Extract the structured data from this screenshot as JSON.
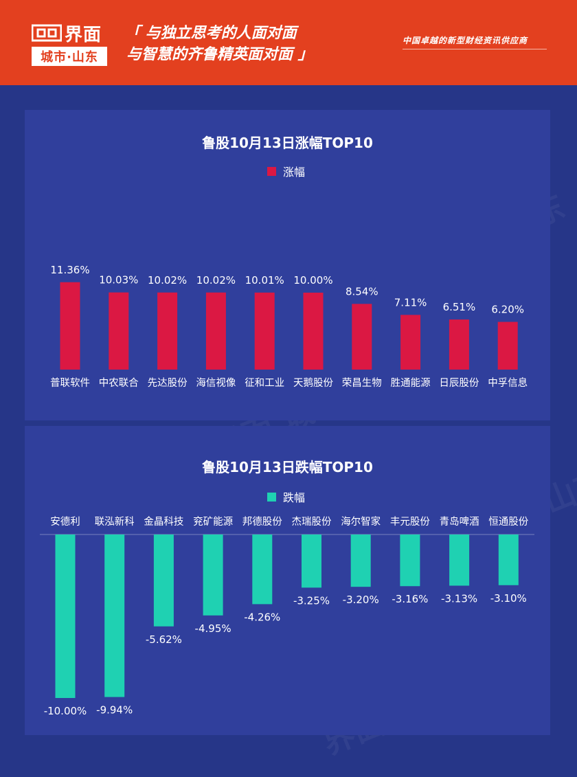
{
  "header": {
    "logo_main": "界面",
    "logo_sub": "城市·山东",
    "slogan_line1": "「 与独立思考的人面对面",
    "slogan_line2": "与智慧的齐鲁精英面对面 」",
    "tagline": "中国卓越的新型财经资讯供应商"
  },
  "colors": {
    "header_bg": "#e3401f",
    "page_bg": "#263688",
    "panel_bg": "#303f9c",
    "gain_bar": "#db1843",
    "loss_bar": "#1fd1b2"
  },
  "watermark_text": "界面 城市·山东",
  "chart_data": [
    {
      "type": "bar",
      "title": "鲁股10月13日涨幅TOP10",
      "legend": "top",
      "categories": [
        "普联软件",
        "中农联合",
        "先达股份",
        "海信视像",
        "征和工业",
        "天鹅股份",
        "荣昌生物",
        "胜通能源",
        "日辰股份",
        "中孚信息"
      ],
      "series": [
        {
          "name": "涨幅",
          "color": "#db1843",
          "values": [
            11.36,
            10.03,
            10.02,
            10.02,
            10.01,
            10.0,
            8.54,
            7.11,
            6.51,
            6.2
          ],
          "labels": [
            "11.36%",
            "10.03%",
            "10.02%",
            "10.02%",
            "10.01%",
            "10.00%",
            "8.54%",
            "7.11%",
            "6.51%",
            "6.20%"
          ]
        }
      ],
      "ylim": [
        0,
        12
      ],
      "grid": false
    },
    {
      "type": "bar",
      "title": "鲁股10月13日跌幅TOP10",
      "legend": "top",
      "categories": [
        "安德利",
        "联泓新科",
        "金晶科技",
        "兖矿能源",
        "邦德股份",
        "杰瑞股份",
        "海尔智家",
        "丰元股份",
        "青岛啤酒",
        "恒通股份"
      ],
      "series": [
        {
          "name": "跌幅",
          "color": "#1fd1b2",
          "values": [
            -10.0,
            -9.94,
            -5.62,
            -4.95,
            -4.26,
            -3.25,
            -3.2,
            -3.16,
            -3.13,
            -3.1
          ],
          "labels": [
            "-10.00%",
            "-9.94%",
            "-5.62%",
            "-4.95%",
            "-4.26%",
            "-3.25%",
            "-3.20%",
            "-3.16%",
            "-3.13%",
            "-3.10%"
          ]
        }
      ],
      "ylim": [
        -10.5,
        0
      ],
      "grid": false
    }
  ]
}
